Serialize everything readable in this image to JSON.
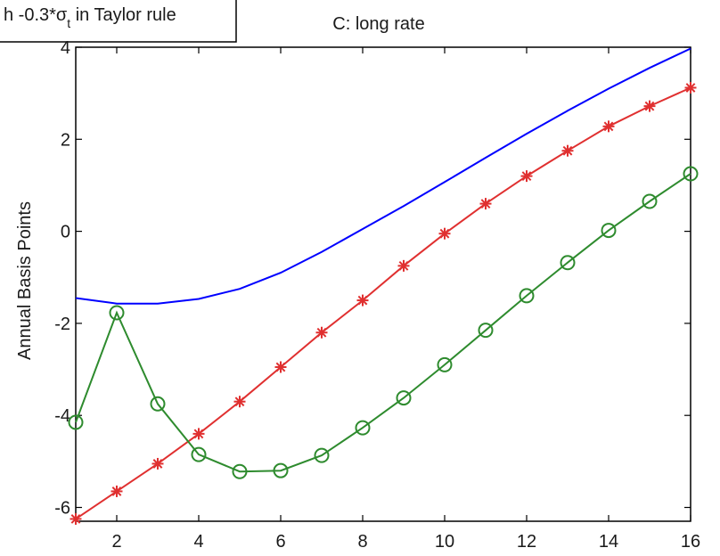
{
  "chart_data": {
    "type": "line",
    "title": "C: long rate",
    "xlabel": "",
    "ylabel": "Annual Basis Points",
    "xlim": [
      1,
      16
    ],
    "ylim": [
      -6.3,
      4
    ],
    "xticks": [
      2,
      4,
      6,
      8,
      10,
      12,
      14,
      16
    ],
    "yticks": [
      -6,
      -4,
      -2,
      0,
      2,
      4
    ],
    "grid": false,
    "legend": {
      "placement": "top-left",
      "text_prefix": "h -0.3*σ",
      "text_sub": "t",
      "text_suffix": " in Taylor rule"
    },
    "series": [
      {
        "color": "#0000ff",
        "marker": "none",
        "x": [
          1,
          2,
          3,
          4,
          5,
          6,
          7,
          8,
          9,
          10,
          11,
          12,
          13,
          14,
          15,
          16
        ],
        "values": [
          -1.45,
          -1.57,
          -1.57,
          -1.47,
          -1.25,
          -0.9,
          -0.45,
          0.05,
          0.55,
          1.07,
          1.6,
          2.12,
          2.62,
          3.1,
          3.55,
          3.97
        ]
      },
      {
        "color": "#e03030",
        "marker": "star",
        "x": [
          1,
          2,
          3,
          4,
          5,
          6,
          7,
          8,
          9,
          10,
          11,
          12,
          13,
          14,
          15,
          16
        ],
        "values": [
          -6.25,
          -5.65,
          -5.05,
          -4.4,
          -3.7,
          -2.95,
          -2.2,
          -1.5,
          -0.75,
          -0.05,
          0.6,
          1.2,
          1.75,
          2.28,
          2.72,
          3.12
        ]
      },
      {
        "color": "#2e8b2e",
        "marker": "circle",
        "x": [
          1,
          2,
          3,
          4,
          5,
          6,
          7,
          8,
          9,
          10,
          11,
          12,
          13,
          14,
          15,
          16
        ],
        "values": [
          -4.15,
          -1.77,
          -3.75,
          -4.85,
          -5.22,
          -5.2,
          -4.87,
          -4.27,
          -3.62,
          -2.9,
          -2.15,
          -1.4,
          -0.68,
          0.02,
          0.65,
          1.25
        ]
      }
    ]
  }
}
